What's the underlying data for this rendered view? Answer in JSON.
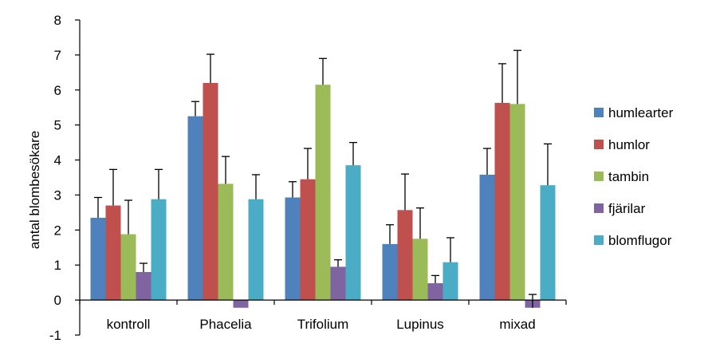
{
  "chart_data": {
    "type": "bar",
    "ylabel": "antal blombesökare",
    "ylim": [
      -1,
      8
    ],
    "yticks": [
      -1,
      0,
      1,
      2,
      3,
      4,
      5,
      6,
      7,
      8
    ],
    "categories": [
      "kontroll",
      "Phacelia",
      "Trifolium",
      "Lupinus",
      "mixad"
    ],
    "legend_position": "right",
    "grid": false,
    "error_bars": true,
    "series": [
      {
        "name": "humlearter",
        "color": "#4f81bd",
        "values": [
          2.35,
          5.25,
          2.93,
          1.6,
          3.58
        ],
        "errors": [
          0.58,
          0.42,
          0.45,
          0.55,
          0.75
        ]
      },
      {
        "name": "humlor",
        "color": "#c0504d",
        "values": [
          2.7,
          6.2,
          3.45,
          2.57,
          5.63
        ],
        "errors": [
          1.03,
          0.82,
          0.88,
          1.03,
          1.12
        ]
      },
      {
        "name": "tambin",
        "color": "#9bbb59",
        "values": [
          1.88,
          3.32,
          6.15,
          1.75,
          5.6
        ],
        "errors": [
          0.97,
          0.78,
          0.75,
          0.88,
          1.53
        ]
      },
      {
        "name": "fjärilar",
        "color": "#8064a2",
        "values": [
          0.8,
          -0.22,
          0.95,
          0.48,
          -0.22
        ],
        "errors": [
          0.25,
          0.0,
          0.2,
          0.22,
          0.38
        ]
      },
      {
        "name": "blomflugor",
        "color": "#4bacc6",
        "values": [
          2.88,
          2.88,
          3.85,
          1.08,
          3.28
        ],
        "errors": [
          0.85,
          0.7,
          0.65,
          0.7,
          1.18
        ]
      }
    ]
  }
}
